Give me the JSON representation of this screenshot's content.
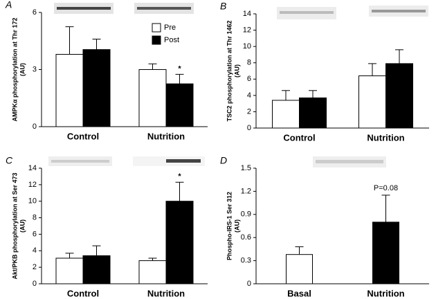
{
  "chart_data": [
    {
      "type": "bar",
      "panel": "A",
      "ylabel": [
        "AMPKα phosphorylation at Thr 172",
        "(AU)"
      ],
      "categories": [
        "Control",
        "Nutrition"
      ],
      "series": [
        {
          "name": "Pre",
          "color": "#ffffff",
          "values": [
            3.8,
            3.0
          ],
          "errors": [
            1.45,
            0.3
          ],
          "notes": [
            null,
            null
          ]
        },
        {
          "name": "Post",
          "color": "#000000",
          "values": [
            4.05,
            2.25
          ],
          "errors": [
            0.55,
            0.5
          ],
          "notes": [
            null,
            "*"
          ]
        }
      ],
      "ylim": [
        0,
        6
      ],
      "yticks": [
        0,
        3,
        6
      ],
      "legend": "top-right"
    },
    {
      "type": "bar",
      "panel": "B",
      "ylabel": [
        "TSC2 phosphorylation at Thr 1462",
        "(AU)"
      ],
      "categories": [
        "Control",
        "Nutrition"
      ],
      "series": [
        {
          "color": "#ffffff",
          "values": [
            3.4,
            6.4
          ],
          "errors": [
            1.2,
            1.5
          ]
        },
        {
          "color": "#000000",
          "values": [
            3.7,
            7.9
          ],
          "errors": [
            0.9,
            1.7
          ]
        }
      ],
      "ylim": [
        0,
        14
      ],
      "yticks": [
        0,
        2,
        4,
        6,
        8,
        10,
        12,
        14
      ]
    },
    {
      "type": "bar",
      "panel": "C",
      "ylabel": [
        "Akt/PKB phosphorylation at Ser 473",
        "(AU)"
      ],
      "categories": [
        "Control",
        "Nutrition"
      ],
      "series": [
        {
          "color": "#ffffff",
          "values": [
            3.1,
            2.8
          ],
          "errors": [
            0.6,
            0.3
          ],
          "notes": [
            null,
            null
          ]
        },
        {
          "color": "#000000",
          "values": [
            3.4,
            10.0
          ],
          "errors": [
            1.2,
            2.3
          ],
          "notes": [
            null,
            "*"
          ]
        }
      ],
      "ylim": [
        0,
        14
      ],
      "yticks": [
        0,
        2,
        4,
        6,
        8,
        10,
        12,
        14
      ]
    },
    {
      "type": "bar",
      "panel": "D",
      "ylabel": [
        "Phospho-IRS-1 Ser 312",
        "(AU)"
      ],
      "categories": [
        "Basal",
        "Nutrition"
      ],
      "series": [
        {
          "colors": [
            "#ffffff",
            "#000000"
          ],
          "values": [
            0.38,
            0.8
          ],
          "errors": [
            0.1,
            0.35
          ],
          "notes": [
            null,
            "P=0.08"
          ]
        }
      ],
      "ylim": [
        0,
        1.5
      ],
      "yticks": [
        0,
        0.3,
        0.6,
        0.9,
        1.2,
        1.5
      ]
    }
  ]
}
